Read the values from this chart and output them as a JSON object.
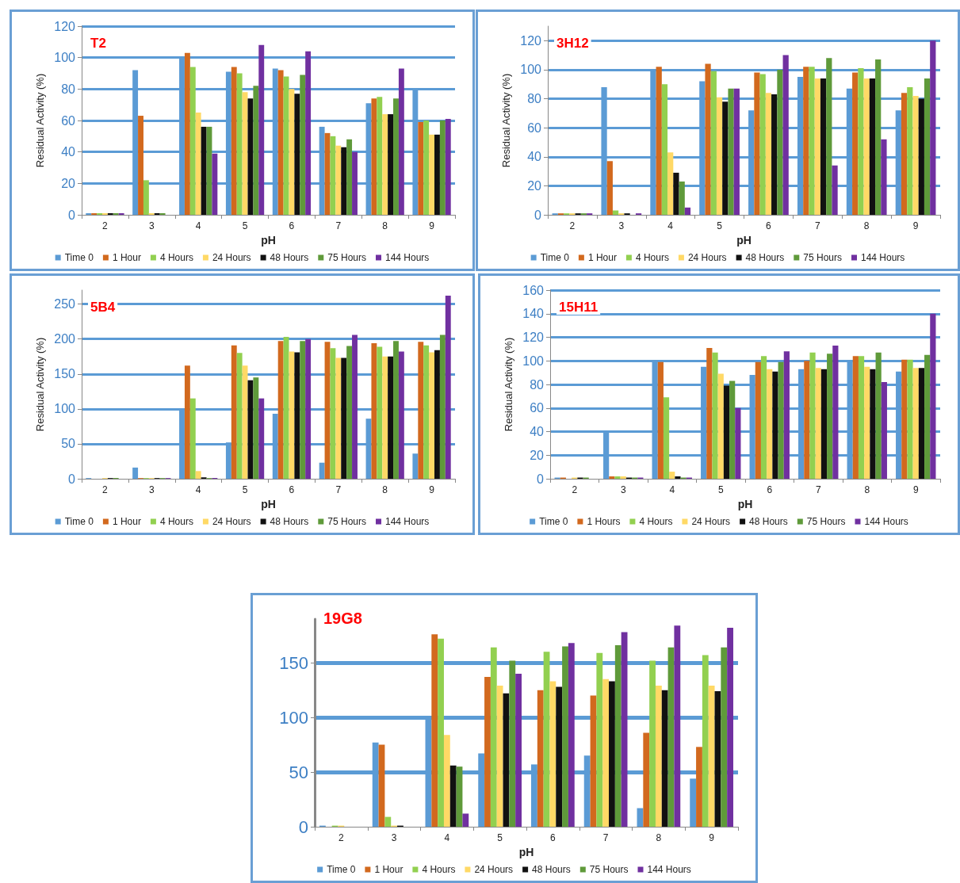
{
  "chart_data": [
    {
      "type": "bar",
      "title": "T2",
      "xlabel": "pH",
      "ylabel": "Residual Activity (%)",
      "categories": [
        "2",
        "3",
        "4",
        "5",
        "6",
        "7",
        "8",
        "9"
      ],
      "ylim": [
        0,
        120
      ],
      "yticks": [
        0,
        20,
        40,
        60,
        80,
        100,
        120
      ],
      "grid": "y",
      "legend": "bottom",
      "series": [
        {
          "name": "Time 0",
          "color": "#5b9bd5",
          "values": [
            1,
            92,
            100,
            91,
            93,
            56,
            71,
            80
          ]
        },
        {
          "name": "1 Hour",
          "color": "#d2691e",
          "values": [
            1,
            63,
            103,
            94,
            92,
            52,
            74,
            59
          ]
        },
        {
          "name": "4 Hours",
          "color": "#92d050",
          "values": [
            1,
            22,
            94,
            90,
            88,
            50,
            75,
            60
          ]
        },
        {
          "name": "24 Hours",
          "color": "#ffd966",
          "values": [
            1,
            1,
            65,
            78,
            80,
            44,
            64,
            51
          ]
        },
        {
          "name": "48 Hours",
          "color": "#111111",
          "values": [
            1,
            1,
            56,
            74,
            77,
            43,
            64,
            51
          ]
        },
        {
          "name": "75 Hours",
          "color": "#5f9a3a",
          "values": [
            1,
            1,
            56,
            82,
            89,
            48,
            74,
            60
          ]
        },
        {
          "name": "144 Hours",
          "color": "#7030a0",
          "values": [
            1,
            0,
            39,
            108,
            104,
            40,
            93,
            61
          ]
        }
      ]
    },
    {
      "type": "bar",
      "title": "3H12",
      "xlabel": "pH",
      "ylabel": "Residual Activity (%)",
      "categories": [
        "2",
        "3",
        "4",
        "5",
        "6",
        "7",
        "8",
        "9"
      ],
      "ylim": [
        0,
        130
      ],
      "yticks": [
        0,
        20,
        40,
        60,
        80,
        100,
        120
      ],
      "grid": "y",
      "legend": "bottom",
      "series": [
        {
          "name": "Time 0",
          "color": "#5b9bd5",
          "values": [
            1,
            88,
            100,
            92,
            72,
            95,
            87,
            72
          ]
        },
        {
          "name": "1 Hour",
          "color": "#d2691e",
          "values": [
            1,
            37,
            102,
            104,
            98,
            102,
            98,
            84
          ]
        },
        {
          "name": "4 Hours",
          "color": "#92d050",
          "values": [
            1,
            3,
            90,
            99,
            97,
            102,
            101,
            88
          ]
        },
        {
          "name": "24 Hours",
          "color": "#ffd966",
          "values": [
            1,
            1,
            43,
            81,
            84,
            94,
            94,
            82
          ]
        },
        {
          "name": "48 Hours",
          "color": "#111111",
          "values": [
            1,
            1,
            29,
            78,
            83,
            94,
            94,
            80
          ]
        },
        {
          "name": "75 Hours",
          "color": "#5f9a3a",
          "values": [
            1,
            0,
            23,
            87,
            100,
            108,
            107,
            94
          ]
        },
        {
          "name": "144 Hours",
          "color": "#7030a0",
          "values": [
            1,
            1,
            5,
            87,
            110,
            34,
            52,
            120
          ]
        }
      ]
    },
    {
      "type": "bar",
      "title": "5B4",
      "xlabel": "pH",
      "ylabel": "Residual Activity (%)",
      "categories": [
        "2",
        "3",
        "4",
        "5",
        "6",
        "7",
        "8",
        "9"
      ],
      "ylim": [
        0,
        270
      ],
      "yticks": [
        0,
        50,
        100,
        150,
        200,
        250
      ],
      "grid": "y",
      "legend": "bottom",
      "series": [
        {
          "name": "Time 0",
          "color": "#5b9bd5",
          "values": [
            1,
            16,
            100,
            52,
            93,
            23,
            86,
            36
          ]
        },
        {
          "name": "1 Hour",
          "color": "#d2691e",
          "values": [
            0,
            1,
            162,
            191,
            197,
            196,
            194,
            196
          ]
        },
        {
          "name": "4 Hours",
          "color": "#92d050",
          "values": [
            0,
            1,
            115,
            180,
            203,
            187,
            189,
            191
          ]
        },
        {
          "name": "24 Hours",
          "color": "#ffd966",
          "values": [
            1,
            1,
            11,
            162,
            182,
            173,
            175,
            181
          ]
        },
        {
          "name": "48 Hours",
          "color": "#111111",
          "values": [
            1,
            1,
            2,
            141,
            181,
            173,
            175,
            184
          ]
        },
        {
          "name": "75 Hours",
          "color": "#5f9a3a",
          "values": [
            1,
            1,
            1,
            145,
            197,
            190,
            197,
            206
          ]
        },
        {
          "name": "144 Hours",
          "color": "#7030a0",
          "values": [
            0,
            1,
            1,
            115,
            200,
            206,
            182,
            262
          ]
        }
      ]
    },
    {
      "type": "bar",
      "title": "15H11",
      "xlabel": "pH",
      "ylabel": "Residual Activity (%)",
      "categories": [
        "2",
        "3",
        "4",
        "5",
        "6",
        "7",
        "8",
        "9"
      ],
      "ylim": [
        0,
        160
      ],
      "yticks": [
        0,
        20,
        40,
        60,
        80,
        100,
        120,
        140,
        160
      ],
      "grid": "y",
      "legend": "bottom",
      "series": [
        {
          "name": "Time 0",
          "color": "#5b9bd5",
          "values": [
            1,
            39,
            100,
            95,
            88,
            93,
            100,
            91
          ]
        },
        {
          "name": "1 Hours",
          "color": "#d2691e",
          "values": [
            1,
            2,
            99,
            111,
            99,
            100,
            104,
            101
          ]
        },
        {
          "name": "4 Hours",
          "color": "#92d050",
          "values": [
            0,
            2,
            69,
            107,
            104,
            107,
            104,
            101
          ]
        },
        {
          "name": "24 Hours",
          "color": "#ffd966",
          "values": [
            1,
            2,
            6,
            89,
            93,
            94,
            95,
            94
          ]
        },
        {
          "name": "48 Hours",
          "color": "#111111",
          "values": [
            1,
            1,
            2,
            79,
            91,
            93,
            93,
            94
          ]
        },
        {
          "name": "75 Hours",
          "color": "#5f9a3a",
          "values": [
            1,
            1,
            1,
            83,
            99,
            106,
            107,
            105
          ]
        },
        {
          "name": "144 Hours",
          "color": "#7030a0",
          "values": [
            0,
            1,
            1,
            60,
            108,
            113,
            82,
            140
          ]
        }
      ]
    },
    {
      "type": "bar",
      "title": "19G8",
      "xlabel": "pH",
      "categories": [
        "2",
        "3",
        "4",
        "5",
        "6",
        "7",
        "8",
        "9"
      ],
      "ylim": [
        0,
        190
      ],
      "yticks": [
        0,
        50,
        100,
        150
      ],
      "grid": "y",
      "legend": "bottom",
      "series": [
        {
          "name": "Time 0",
          "color": "#5b9bd5",
          "values": [
            1,
            77,
            100,
            67,
            57,
            65,
            17,
            44
          ]
        },
        {
          "name": "1 Hour",
          "color": "#d2691e",
          "values": [
            0,
            75,
            176,
            137,
            125,
            120,
            86,
            73
          ]
        },
        {
          "name": "4 Hours",
          "color": "#92d050",
          "values": [
            1,
            9,
            172,
            164,
            160,
            159,
            152,
            157
          ]
        },
        {
          "name": "24 Hours",
          "color": "#ffd966",
          "values": [
            1,
            1,
            84,
            129,
            133,
            135,
            129,
            129
          ]
        },
        {
          "name": "48 Hours",
          "color": "#111111",
          "values": [
            0,
            1,
            56,
            122,
            128,
            133,
            125,
            124
          ]
        },
        {
          "name": "75 Hours",
          "color": "#5f9a3a",
          "values": [
            0,
            0,
            55,
            152,
            165,
            166,
            164,
            164
          ]
        },
        {
          "name": "144 Hours",
          "color": "#7030a0",
          "values": [
            0,
            0,
            12,
            140,
            168,
            178,
            184,
            182
          ]
        }
      ]
    }
  ]
}
